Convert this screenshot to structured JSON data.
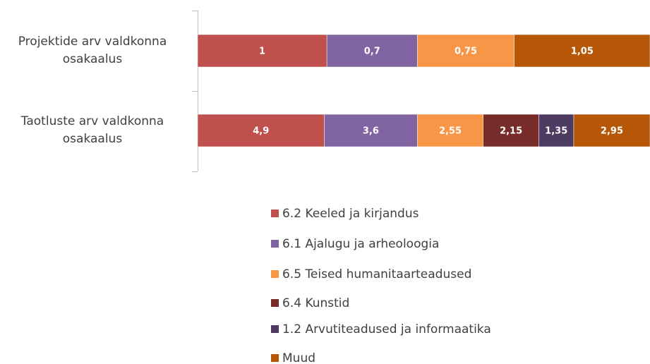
{
  "chart_data": {
    "type": "stacked_bar_100_horizontal",
    "categories": [
      "Projektide arv valdkonna osakaalus",
      "Taotluste arv valdkonna osakaalus"
    ],
    "series": [
      {
        "name": "6.2 Keeled ja kirjandus",
        "color": "#c0504d",
        "values": [
          1,
          4.9
        ],
        "value_labels": [
          "1",
          "4,9"
        ]
      },
      {
        "name": "6.1 Ajalugu ja arheoloogia",
        "color": "#8064a2",
        "values": [
          0.7,
          3.6
        ],
        "value_labels": [
          "0,7",
          "3,6"
        ]
      },
      {
        "name": "6.5 Teised humanitaarteadused",
        "color": "#f79646",
        "values": [
          0.75,
          2.55
        ],
        "value_labels": [
          "0,75",
          "2,55"
        ]
      },
      {
        "name": "6.4 Kunstid",
        "color": "#772c2a",
        "values": [
          null,
          2.15
        ],
        "value_labels": [
          null,
          "2,15"
        ]
      },
      {
        "name": "1.2 Arvutiteadused ja informaatika",
        "color": "#4d3b62",
        "values": [
          null,
          1.35
        ],
        "value_labels": [
          null,
          "1,35"
        ]
      },
      {
        "name": "Muud",
        "color": "#b65708",
        "values": [
          1.05,
          2.95
        ],
        "value_labels": [
          "1,05",
          "2,95"
        ]
      }
    ],
    "legend": "bottom"
  }
}
